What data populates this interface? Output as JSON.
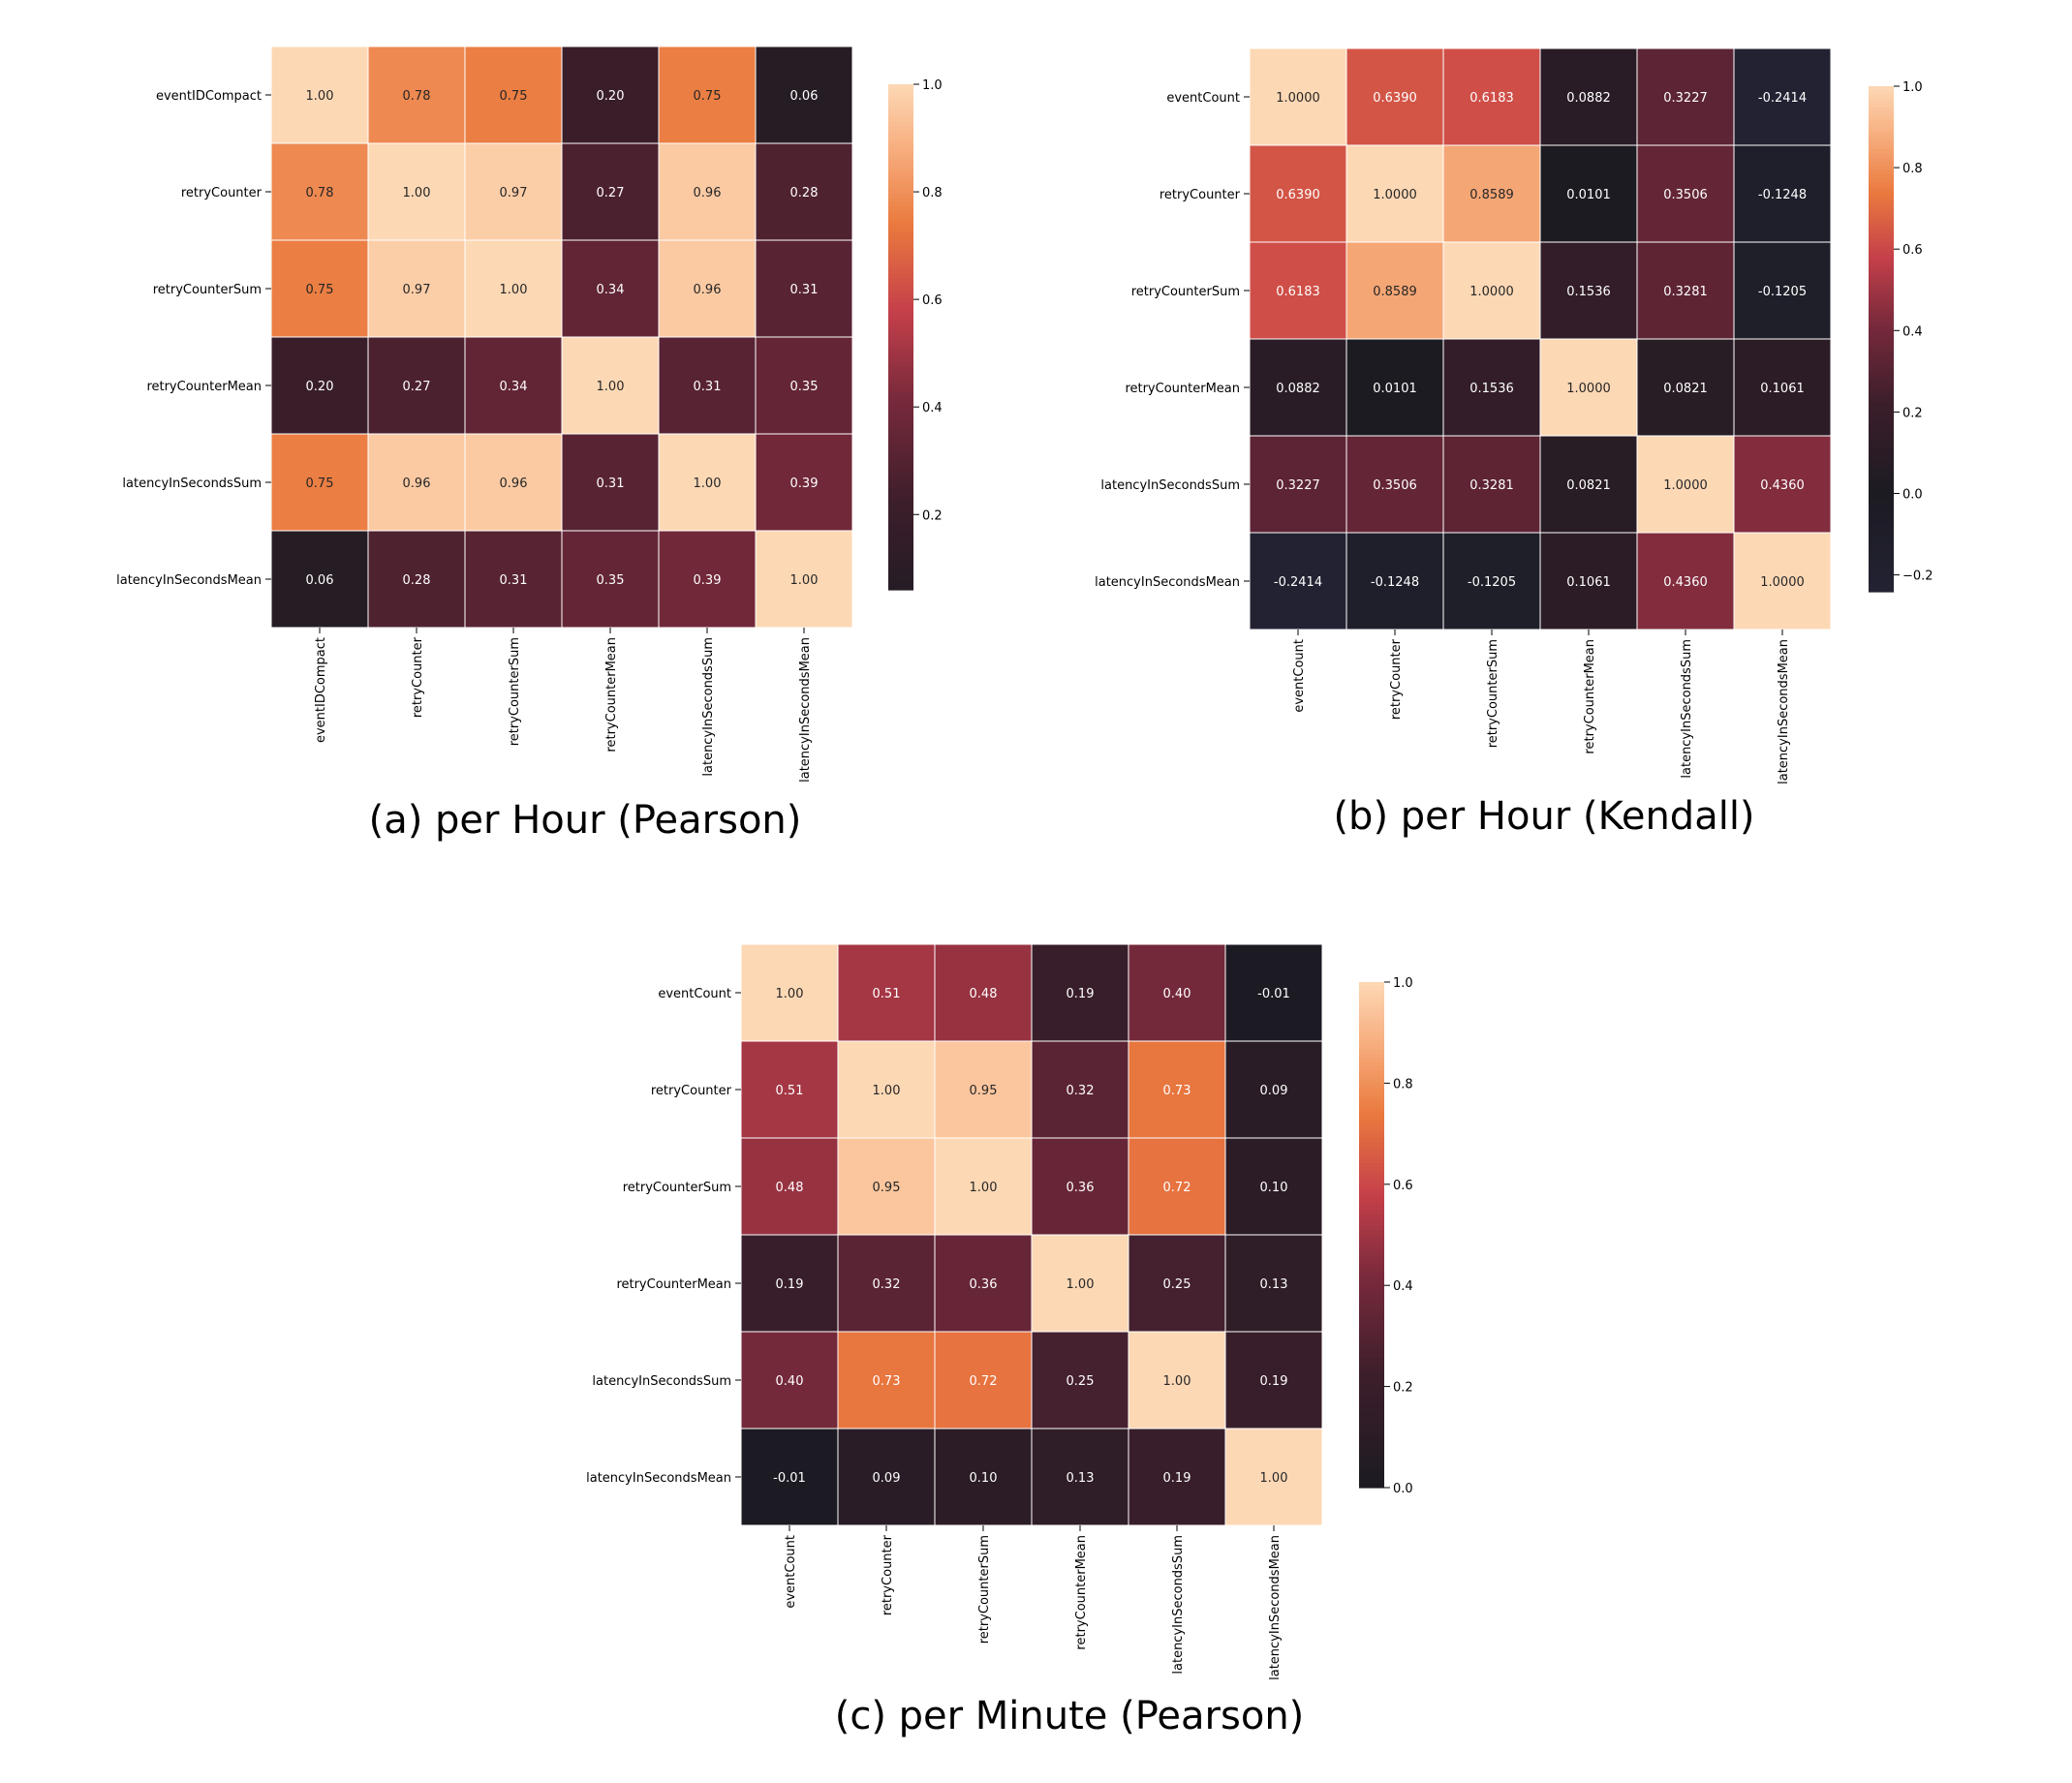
{
  "chart_data": [
    {
      "type": "heatmap",
      "caption": "(a) per Hour (Pearson)",
      "labels": [
        "eventIDCompact",
        "retryCounter",
        "retryCounterSum",
        "retryCounterMean",
        "latencyInSecondsSum",
        "latencyInSecondsMean"
      ],
      "values": [
        [
          1.0,
          0.78,
          0.75,
          0.2,
          0.75,
          0.06
        ],
        [
          0.78,
          1.0,
          0.97,
          0.27,
          0.96,
          0.28
        ],
        [
          0.75,
          0.97,
          1.0,
          0.34,
          0.96,
          0.31
        ],
        [
          0.2,
          0.27,
          0.34,
          1.0,
          0.31,
          0.35
        ],
        [
          0.75,
          0.96,
          0.96,
          0.31,
          1.0,
          0.39
        ],
        [
          0.06,
          0.28,
          0.31,
          0.35,
          0.39,
          1.0
        ]
      ],
      "cell_labels": [
        [
          "1.00",
          "0.78",
          "0.75",
          "0.20",
          "0.75",
          "0.06"
        ],
        [
          "0.78",
          "1.00",
          "0.97",
          "0.27",
          "0.96",
          "0.28"
        ],
        [
          "0.75",
          "0.97",
          "1.00",
          "0.34",
          "0.96",
          "0.31"
        ],
        [
          "0.20",
          "0.27",
          "0.34",
          "1.00",
          "0.31",
          "0.35"
        ],
        [
          "0.75",
          "0.96",
          "0.96",
          "0.31",
          "1.00",
          "0.39"
        ],
        [
          "0.06",
          "0.28",
          "0.31",
          "0.35",
          "0.39",
          "1.00"
        ]
      ],
      "colorbar": {
        "min": 0.06,
        "max": 1.0,
        "center": 0.0,
        "ticks": [
          0.2,
          0.4,
          0.6,
          0.8,
          1.0
        ],
        "tick_labels": [
          "0.2",
          "0.4",
          "0.6",
          "0.8",
          "1.0"
        ]
      }
    },
    {
      "type": "heatmap",
      "caption": "(b) per Hour (Kendall)",
      "labels": [
        "eventCount",
        "retryCounter",
        "retryCounterSum",
        "retryCounterMean",
        "latencyInSecondsSum",
        "latencyInSecondsMean"
      ],
      "values": [
        [
          1.0,
          0.639,
          0.6183,
          0.0882,
          0.3227,
          -0.2414
        ],
        [
          0.639,
          1.0,
          0.8589,
          0.0101,
          0.3506,
          -0.1248
        ],
        [
          0.6183,
          0.8589,
          1.0,
          0.1536,
          0.3281,
          -0.1205
        ],
        [
          0.0882,
          0.0101,
          0.1536,
          1.0,
          0.0821,
          0.1061
        ],
        [
          0.3227,
          0.3506,
          0.3281,
          0.0821,
          1.0,
          0.436
        ],
        [
          -0.2414,
          -0.1248,
          -0.1205,
          0.1061,
          0.436,
          1.0
        ]
      ],
      "cell_labels": [
        [
          "1.0000",
          "0.6390",
          "0.6183",
          "0.0882",
          "0.3227",
          "-0.2414"
        ],
        [
          "0.6390",
          "1.0000",
          "0.8589",
          "0.0101",
          "0.3506",
          "-0.1248"
        ],
        [
          "0.6183",
          "0.8589",
          "1.0000",
          "0.1536",
          "0.3281",
          "-0.1205"
        ],
        [
          "0.0882",
          "0.0101",
          "0.1536",
          "1.0000",
          "0.0821",
          "0.1061"
        ],
        [
          "0.3227",
          "0.3506",
          "0.3281",
          "0.0821",
          "1.0000",
          "0.4360"
        ],
        [
          "-0.2414",
          "-0.1248",
          "-0.1205",
          "0.1061",
          "0.4360",
          "1.0000"
        ]
      ],
      "colorbar": {
        "min": -0.2414,
        "max": 1.0,
        "center": 0.0,
        "ticks": [
          -0.2,
          0.0,
          0.2,
          0.4,
          0.6,
          0.8,
          1.0
        ],
        "tick_labels": [
          "−0.2",
          "0.0",
          "0.2",
          "0.4",
          "0.6",
          "0.8",
          "1.0"
        ]
      }
    },
    {
      "type": "heatmap",
      "caption": "(c) per Minute (Pearson)",
      "labels": [
        "eventCount",
        "retryCounter",
        "retryCounterSum",
        "retryCounterMean",
        "latencyInSecondsSum",
        "latencyInSecondsMean"
      ],
      "values": [
        [
          1.0,
          0.51,
          0.48,
          0.19,
          0.4,
          -0.01
        ],
        [
          0.51,
          1.0,
          0.95,
          0.32,
          0.73,
          0.09
        ],
        [
          0.48,
          0.95,
          1.0,
          0.36,
          0.72,
          0.1
        ],
        [
          0.19,
          0.32,
          0.36,
          1.0,
          0.25,
          0.13
        ],
        [
          0.4,
          0.73,
          0.72,
          0.25,
          1.0,
          0.19
        ],
        [
          -0.01,
          0.09,
          0.1,
          0.13,
          0.19,
          1.0
        ]
      ],
      "cell_labels": [
        [
          "1.00",
          "0.51",
          "0.48",
          "0.19",
          "0.40",
          "-0.01"
        ],
        [
          "0.51",
          "1.00",
          "0.95",
          "0.32",
          "0.73",
          "0.09"
        ],
        [
          "0.48",
          "0.95",
          "1.00",
          "0.36",
          "0.72",
          "0.10"
        ],
        [
          "0.19",
          "0.32",
          "0.36",
          "1.00",
          "0.25",
          "0.13"
        ],
        [
          "0.40",
          "0.73",
          "0.72",
          "0.25",
          "1.00",
          "0.19"
        ],
        [
          "-0.01",
          "0.09",
          "0.10",
          "0.13",
          "0.19",
          "1.00"
        ]
      ],
      "colorbar": {
        "min": 0.0,
        "max": 1.0,
        "center": 0.0,
        "ticks": [
          0.0,
          0.2,
          0.4,
          0.6,
          0.8,
          1.0
        ],
        "tick_labels": [
          "0.0",
          "0.2",
          "0.4",
          "0.6",
          "0.8",
          "1.0"
        ]
      }
    }
  ]
}
